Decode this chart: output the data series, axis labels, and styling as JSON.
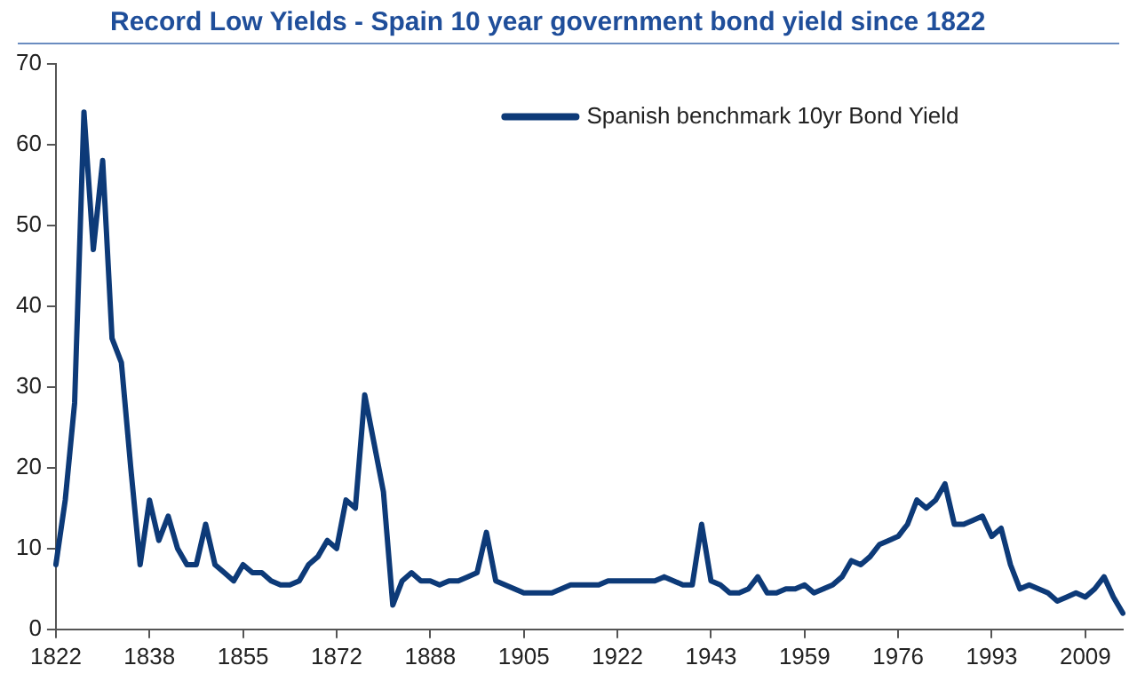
{
  "chart_data": {
    "type": "line",
    "title": "Record Low Yields - Spain 10 year government bond yield since 1822",
    "categories": [
      "1822",
      null,
      null,
      null,
      null,
      null,
      null,
      null,
      null,
      null,
      "1838",
      null,
      null,
      null,
      null,
      null,
      null,
      null,
      null,
      null,
      "1855",
      null,
      null,
      null,
      null,
      null,
      null,
      null,
      null,
      null,
      "1872",
      null,
      null,
      null,
      null,
      null,
      null,
      null,
      null,
      null,
      "1888",
      null,
      null,
      null,
      null,
      null,
      null,
      null,
      null,
      null,
      "1905",
      null,
      null,
      null,
      null,
      null,
      null,
      null,
      null,
      null,
      "1922",
      null,
      null,
      null,
      null,
      null,
      null,
      null,
      null,
      null,
      "1943",
      null,
      null,
      null,
      null,
      null,
      null,
      null,
      null,
      null,
      "1959",
      null,
      null,
      null,
      null,
      null,
      null,
      null,
      null,
      null,
      "1976",
      null,
      null,
      null,
      null,
      null,
      null,
      null,
      null,
      null,
      "1993",
      null,
      null,
      null,
      null,
      null,
      null,
      null,
      null,
      null,
      "2009",
      null,
      null,
      null,
      null
    ],
    "series": [
      {
        "name": "Spanish benchmark 10yr Bond Yield",
        "color": "#0d3a78",
        "values": [
          8,
          16,
          28,
          64,
          47,
          58,
          36,
          33,
          20,
          8,
          16,
          11,
          14,
          10,
          8,
          8,
          13,
          8,
          7,
          6,
          8,
          7,
          7,
          6,
          5.5,
          5.5,
          6,
          8,
          9,
          11,
          10,
          16,
          15,
          29,
          23,
          17,
          3,
          6,
          7,
          6,
          6,
          5.5,
          6,
          6,
          6.5,
          7,
          12,
          6,
          5.5,
          5,
          4.5,
          4.5,
          4.5,
          4.5,
          5,
          5.5,
          5.5,
          5.5,
          5.5,
          6,
          6,
          6,
          6,
          6,
          6,
          6.5,
          6,
          5.5,
          5.5,
          13,
          6,
          5.5,
          4.5,
          4.5,
          5,
          6.5,
          4.5,
          4.5,
          5,
          5,
          5.5,
          4.5,
          5,
          5.5,
          6.5,
          8.5,
          8,
          9,
          10.5,
          11,
          11.5,
          13,
          16,
          15,
          16,
          18,
          13,
          13,
          13.5,
          14,
          11.5,
          12.5,
          8,
          5,
          5.5,
          5,
          4.5,
          3.5,
          4,
          4.5,
          4,
          5,
          6.5,
          4,
          2
        ]
      }
    ],
    "ylim": [
      0,
      70
    ],
    "yticks": [
      0,
      10,
      20,
      30,
      40,
      50,
      60,
      70
    ],
    "legend": "top right",
    "grid": false,
    "marker": "none",
    "line_style": "solid"
  }
}
